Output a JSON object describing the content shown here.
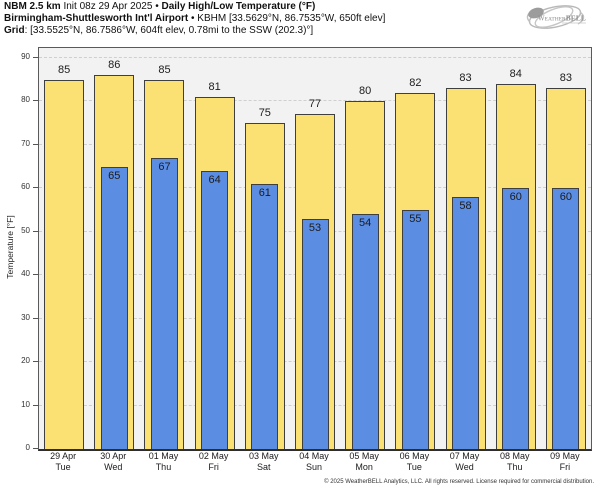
{
  "header": {
    "model": "NBM 2.5 km",
    "init": " Init 08z 29 Apr 2025 • ",
    "title": "Daily High/Low Temperature (°F)",
    "station": "Birmingham-Shuttlesworth Int'l Airport",
    "station_meta": " • KBHM [33.5629°N, 86.7535°W, 650ft elev]",
    "grid_label": "Grid",
    "grid_meta": ": [33.5525°N, 86.7586°W, 604ft elev, 0.78mi to the SSW (202.3)°]"
  },
  "logo": {
    "brand_part1": "Weather",
    "brand_part2": "BELL"
  },
  "chart_data": {
    "type": "bar",
    "title": "Daily High/Low Temperature (°F)",
    "xlabel": "",
    "ylabel": "Temperature [°F]",
    "ylim": [
      0,
      90
    ],
    "ytick_step": 10,
    "grid": "horizontal-dashed",
    "legend_position": "none",
    "categories": [
      {
        "date": "29 Apr",
        "dow": "Tue"
      },
      {
        "date": "30 Apr",
        "dow": "Wed"
      },
      {
        "date": "01 May",
        "dow": "Thu"
      },
      {
        "date": "02 May",
        "dow": "Fri"
      },
      {
        "date": "03 May",
        "dow": "Sat"
      },
      {
        "date": "04 May",
        "dow": "Sun"
      },
      {
        "date": "05 May",
        "dow": "Mon"
      },
      {
        "date": "06 May",
        "dow": "Tue"
      },
      {
        "date": "07 May",
        "dow": "Wed"
      },
      {
        "date": "08 May",
        "dow": "Thu"
      },
      {
        "date": "09 May",
        "dow": "Fri"
      }
    ],
    "series": [
      {
        "name": "Daily High",
        "color": "#FBE173",
        "values": [
          85,
          86,
          85,
          81,
          75,
          77,
          80,
          82,
          83,
          84,
          83
        ]
      },
      {
        "name": "Daily Low",
        "color": "#5B8DE3",
        "values": [
          null,
          65,
          67,
          64,
          61,
          53,
          54,
          55,
          58,
          60,
          60
        ]
      }
    ]
  },
  "colors": {
    "plot_bg": "#F2F2F2",
    "bar_border": "#3F3F3F",
    "grid_line": "#CFCFCF",
    "axis": "#555555",
    "logo_gray": "#ADADAD"
  },
  "footer": {
    "copyright": "© 2025 WeatherBELL Analytics, LLC. All rights reserved. License required for commercial distribution."
  }
}
